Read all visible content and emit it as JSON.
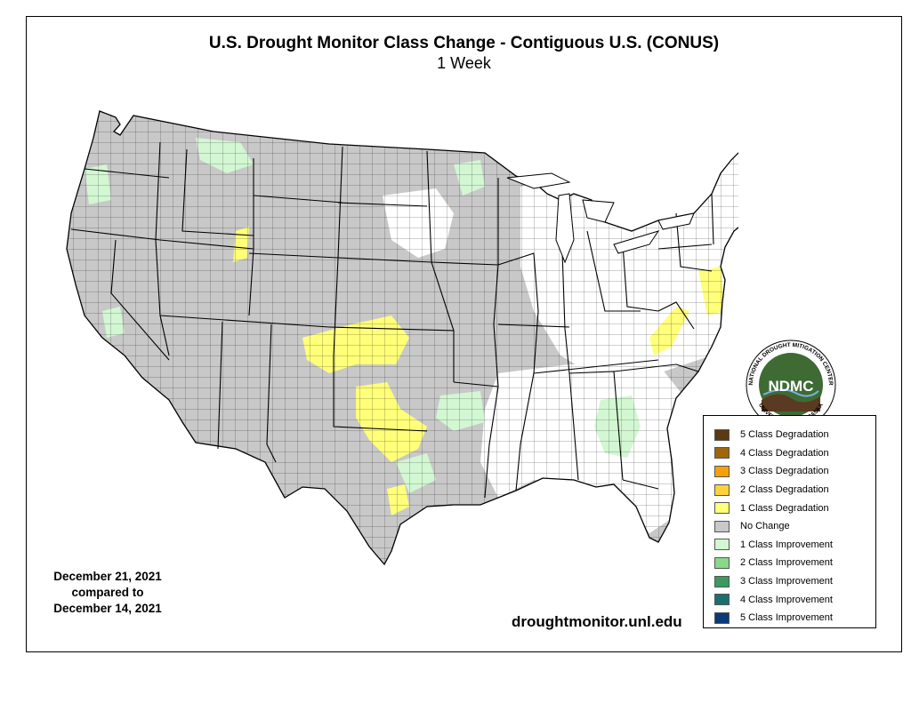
{
  "title": "U.S. Drought Monitor Class Change - Contiguous U.S. (CONUS)",
  "subtitle": "1 Week",
  "dates": {
    "line1": "December 21, 2021",
    "line2": "compared to",
    "line3": "December 14, 2021"
  },
  "website": "droughtmonitor.unl.edu",
  "logo": {
    "text": "NDMC",
    "ring_top": "NATIONAL DROUGHT MITIGATION CENTER",
    "ring_bottom": "UNIVERSITY OF NEBRASKA",
    "colors": {
      "inner": "#3e6b34",
      "ring": "#ffffff",
      "hills": "#5a3a22"
    }
  },
  "legend": [
    {
      "label": "5 Class Degradation",
      "color": "#5a3a12"
    },
    {
      "label": "4 Class Degradation",
      "color": "#a0660a"
    },
    {
      "label": "3 Class Degradation",
      "color": "#f7a10a"
    },
    {
      "label": "2 Class Degradation",
      "color": "#ffd23c"
    },
    {
      "label": "1 Class Degradation",
      "color": "#ffff7a"
    },
    {
      "label": "No Change",
      "color": "#c8c8c8"
    },
    {
      "label": "1 Class Improvement",
      "color": "#d2f7d2"
    },
    {
      "label": "2 Class Improvement",
      "color": "#8ad88a"
    },
    {
      "label": "3 Class Improvement",
      "color": "#3a9a60"
    },
    {
      "label": "4 Class Improvement",
      "color": "#1a7070"
    },
    {
      "label": "5 Class Improvement",
      "color": "#0a3a7a"
    }
  ],
  "map_colors": {
    "no_change": "#c8c8c8",
    "improve1": "#d2f7d2",
    "degrade1": "#ffff7a",
    "no_drought": "#ffffff",
    "boundary": "#000000"
  }
}
